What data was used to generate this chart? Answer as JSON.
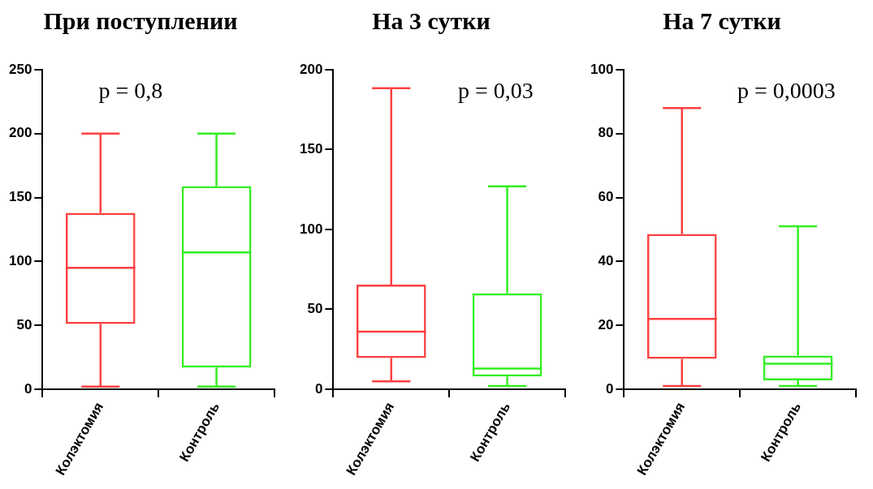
{
  "chart_data": [
    {
      "type": "box",
      "title": "При поступлении",
      "categories": [
        "Колэктомия",
        "Контроль"
      ],
      "colors": [
        "#ff4040",
        "#33ee22"
      ],
      "boxes": [
        {
          "low": 2,
          "q1": 51,
          "median": 95,
          "q3": 138,
          "high": 200
        },
        {
          "low": 2,
          "q1": 17,
          "median": 107,
          "q3": 159,
          "high": 200
        }
      ],
      "ylim": [
        0,
        250
      ],
      "yticks": [
        0,
        50,
        100,
        150,
        200,
        250
      ],
      "annotations": [
        "p = 0,8"
      ]
    },
    {
      "type": "box",
      "title": "На 3 сутки",
      "categories": [
        "Колэктомия",
        "Контроль"
      ],
      "colors": [
        "#ff4040",
        "#33ee22"
      ],
      "boxes": [
        {
          "low": 5,
          "q1": 19.5,
          "median": 36,
          "q3": 65.5,
          "high": 188.5
        },
        {
          "low": 2,
          "q1": 8,
          "median": 13,
          "q3": 60,
          "high": 127
        }
      ],
      "ylim": [
        0,
        200
      ],
      "yticks": [
        0,
        50,
        100,
        150,
        200
      ],
      "annotations": [
        "p = 0,03"
      ]
    },
    {
      "type": "box",
      "title": "На 7 сутки",
      "categories": [
        "Колэктомия",
        "Контроль"
      ],
      "colors": [
        "#ff4040",
        "#33ee22"
      ],
      "boxes": [
        {
          "low": 1,
          "q1": 9.5,
          "median": 22,
          "q3": 48.6,
          "high": 88
        },
        {
          "low": 1,
          "q1": 2.8,
          "median": 8,
          "q3": 10.5,
          "high": 51
        }
      ],
      "ylim": [
        0,
        100
      ],
      "yticks": [
        0,
        20,
        40,
        60,
        80,
        100
      ],
      "annotations": [
        "p = 0,0003"
      ]
    }
  ]
}
